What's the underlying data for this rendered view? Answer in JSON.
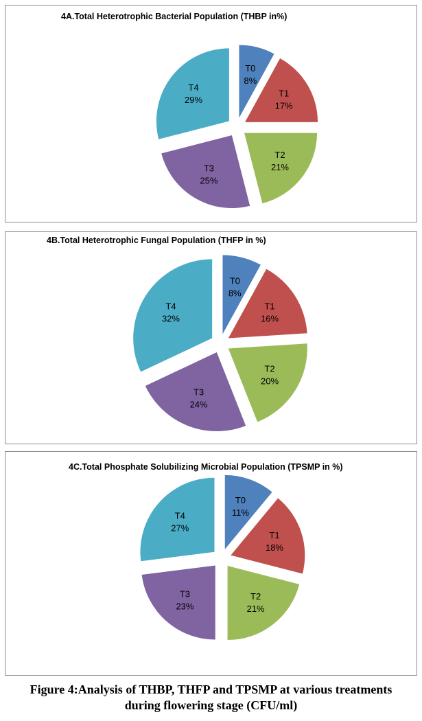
{
  "chart_data": [
    {
      "type": "pie",
      "title": "4A.Total Heterotrophic Bacterial Population (THBP in%)",
      "labels": [
        "T0",
        "T1",
        "T2",
        "T3",
        "T4"
      ],
      "values": [
        8,
        17,
        21,
        25,
        29
      ],
      "value_labels": [
        "8%",
        "17%",
        "21%",
        "25%",
        "29%"
      ]
    },
    {
      "type": "pie",
      "title": "4B.Total Heterotrophic Fungal Population (THFP in %)",
      "labels": [
        "T0",
        "T1",
        "T2",
        "T3",
        "T4"
      ],
      "values": [
        8,
        16,
        20,
        24,
        32
      ],
      "value_labels": [
        "8%",
        "16%",
        "20%",
        "24%",
        "32%"
      ]
    },
    {
      "type": "pie",
      "title": "4C.Total Phosphate Solubilizing Microbial Population (TPSMP in %)",
      "labels": [
        "T0",
        "T1",
        "T2",
        "T3",
        "T4"
      ],
      "values": [
        11,
        18,
        21,
        23,
        27
      ],
      "value_labels": [
        "11%",
        "18%",
        "21%",
        "23%",
        "27%"
      ]
    }
  ],
  "colors": [
    "#4f81bd",
    "#c0504d",
    "#9bbb59",
    "#8064a2",
    "#4bacc6"
  ],
  "caption": {
    "line1": "Figure 4:Analysis of THBP, THFP and TPSMP at various treatments",
    "line2": "during flowering stage (CFU/ml)"
  }
}
